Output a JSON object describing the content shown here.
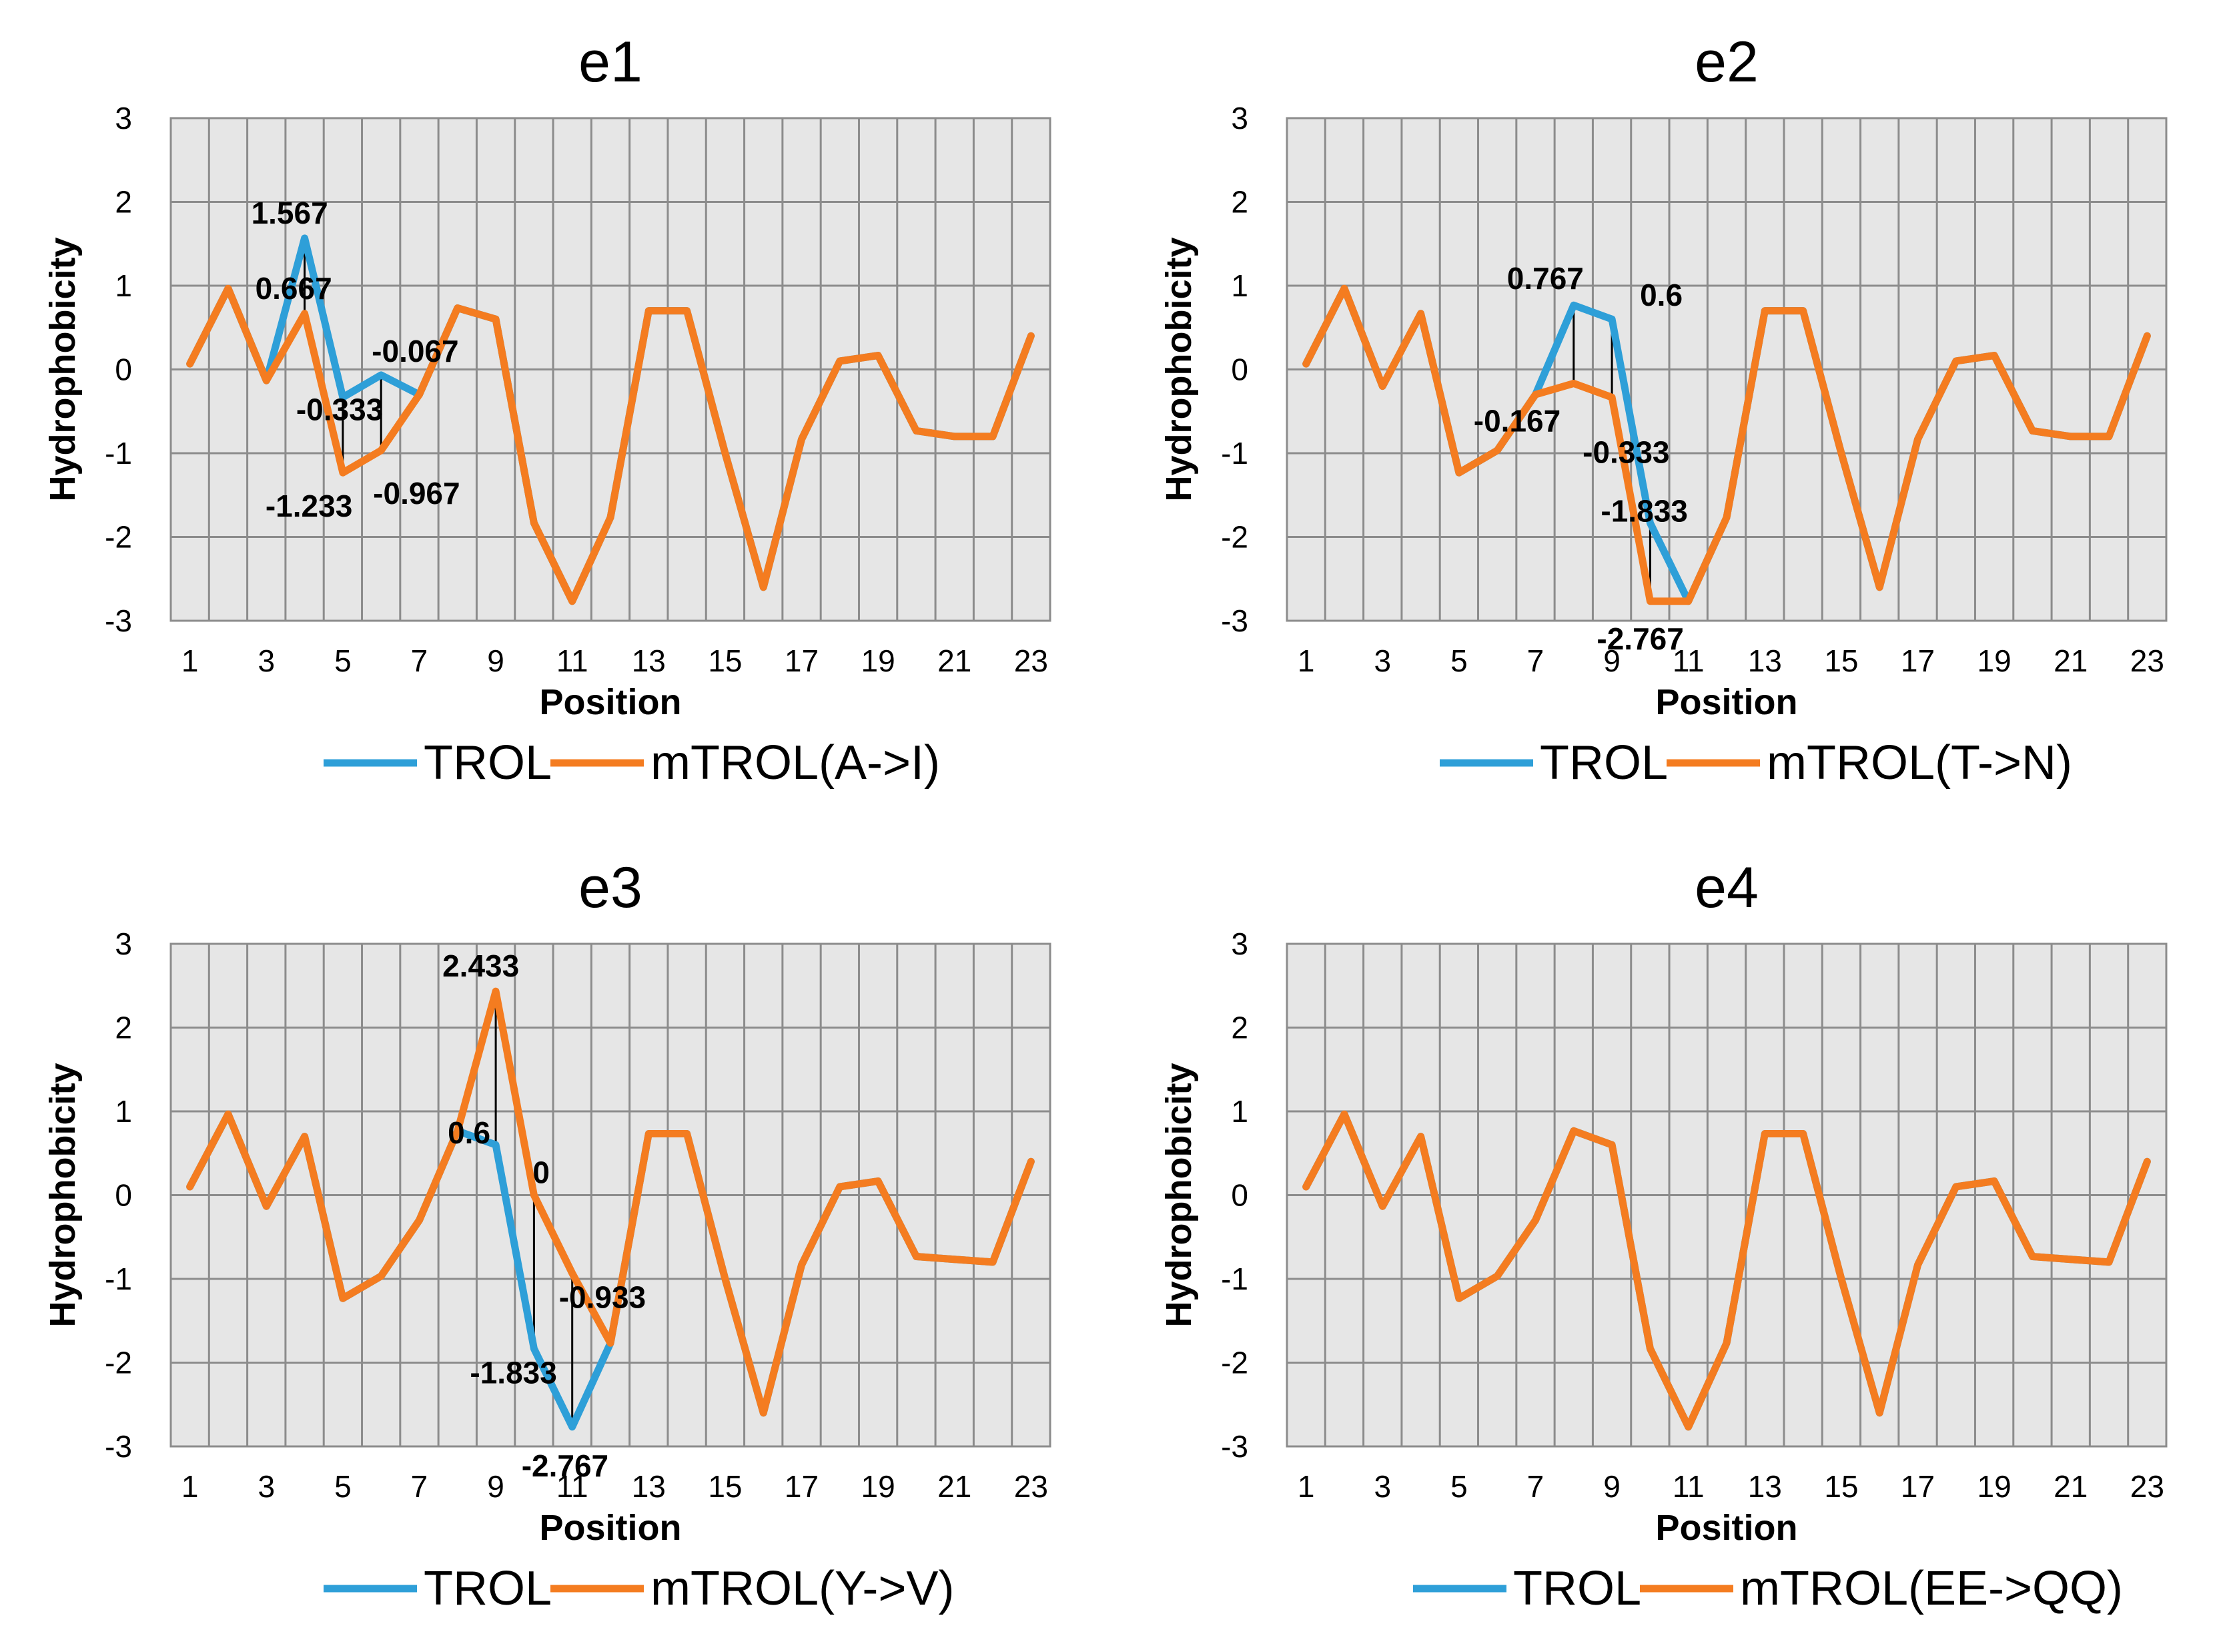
{
  "chart_data": [
    {
      "type": "line",
      "title": "e1",
      "xlabel": "Position",
      "ylabel": "Hydrophobicity",
      "ylim": [
        -3,
        3
      ],
      "xlim": [
        1,
        23
      ],
      "x_ticks": [
        "1",
        "3",
        "5",
        "7",
        "9",
        "11",
        "13",
        "15",
        "17",
        "19",
        "21",
        "23"
      ],
      "y_ticks": [
        "3",
        "2",
        "1",
        "0",
        "-1",
        "-2",
        "-3"
      ],
      "grid": true,
      "legend_position": "bottom",
      "colors": {
        "TROL": "#2e9fd8",
        "mTROL": "#f47c20"
      },
      "x": [
        1,
        2,
        3,
        4,
        5,
        6,
        7,
        8,
        9,
        10,
        11,
        12,
        13,
        14,
        15,
        16,
        17,
        18,
        19,
        20,
        21,
        22,
        23
      ],
      "series": [
        {
          "name": "TROL",
          "values": [
            0.067,
            0.967,
            -0.133,
            1.567,
            -0.333,
            -0.067,
            -0.3,
            0.733,
            0.6,
            -1.833,
            -2.767,
            -1.767,
            0.7,
            0.7,
            -1.0,
            -2.6,
            -0.833,
            0.1,
            0.167,
            -0.733,
            -0.8,
            -0.8,
            0.4
          ]
        },
        {
          "name": "mTROL(A->I)",
          "values": [
            0.067,
            0.967,
            -0.133,
            0.667,
            -1.233,
            -0.967,
            -0.3,
            0.733,
            0.6,
            -1.833,
            -2.767,
            -1.767,
            0.7,
            0.7,
            -1.0,
            -2.6,
            -0.833,
            0.1,
            0.167,
            -0.733,
            -0.8,
            -0.8,
            0.4
          ]
        }
      ],
      "annotations": [
        {
          "x": 4,
          "y": 1.567,
          "text": "1.567"
        },
        {
          "x": 4,
          "y": 0.667,
          "text": "0.667"
        },
        {
          "x": 5,
          "y": -0.333,
          "text": "-0.333"
        },
        {
          "x": 5,
          "y": -1.233,
          "text": "-1.233"
        },
        {
          "x": 6,
          "y": -0.067,
          "text": "-0.067"
        },
        {
          "x": 6,
          "y": -0.967,
          "text": "-0.967"
        }
      ]
    },
    {
      "type": "line",
      "title": "e2",
      "xlabel": "Position",
      "ylabel": "Hydrophobicity",
      "ylim": [
        -3,
        3
      ],
      "xlim": [
        1,
        23
      ],
      "x_ticks": [
        "1",
        "3",
        "5",
        "7",
        "9",
        "11",
        "13",
        "15",
        "17",
        "19",
        "21",
        "23"
      ],
      "y_ticks": [
        "3",
        "2",
        "1",
        "0",
        "-1",
        "-2",
        "-3"
      ],
      "grid": true,
      "legend_position": "bottom",
      "colors": {
        "TROL": "#2e9fd8",
        "mTROL": "#f47c20"
      },
      "x": [
        1,
        2,
        3,
        4,
        5,
        6,
        7,
        8,
        9,
        10,
        11,
        12,
        13,
        14,
        15,
        16,
        17,
        18,
        19,
        20,
        21,
        22,
        23
      ],
      "series": [
        {
          "name": "TROL",
          "values": [
            0.067,
            0.967,
            -0.2,
            0.667,
            -1.233,
            -0.967,
            -0.3,
            0.767,
            0.6,
            -1.833,
            -2.767,
            -1.767,
            0.7,
            0.7,
            -1.0,
            -2.6,
            -0.833,
            0.1,
            0.167,
            -0.733,
            -0.8,
            -0.8,
            0.4
          ]
        },
        {
          "name": "mTROL(T->N)",
          "values": [
            0.067,
            0.967,
            -0.2,
            0.667,
            -1.233,
            -0.967,
            -0.3,
            -0.167,
            -0.333,
            -2.767,
            -2.767,
            -1.767,
            0.7,
            0.7,
            -1.0,
            -2.6,
            -0.833,
            0.1,
            0.167,
            -0.733,
            -0.8,
            -0.8,
            0.4
          ]
        }
      ],
      "annotations": [
        {
          "x": 8,
          "y": 0.767,
          "text": "0.767"
        },
        {
          "x": 9,
          "y": 0.6,
          "text": "0.6"
        },
        {
          "x": 8,
          "y": -0.167,
          "text": "-0.167"
        },
        {
          "x": 9,
          "y": -0.333,
          "text": "-0.333"
        },
        {
          "x": 10,
          "y": -1.833,
          "text": "-1.833"
        },
        {
          "x": 10,
          "y": -2.767,
          "text": "-2.767"
        }
      ]
    },
    {
      "type": "line",
      "title": "e3",
      "xlabel": "Position",
      "ylabel": "Hydrophobicity",
      "ylim": [
        -3,
        3
      ],
      "xlim": [
        1,
        23
      ],
      "x_ticks": [
        "1",
        "3",
        "5",
        "7",
        "9",
        "11",
        "13",
        "15",
        "17",
        "19",
        "21",
        "23"
      ],
      "y_ticks": [
        "3",
        "2",
        "1",
        "0",
        "-1",
        "-2",
        "-3"
      ],
      "grid": true,
      "legend_position": "bottom",
      "colors": {
        "TROL": "#2e9fd8",
        "mTROL": "#f47c20"
      },
      "x": [
        1,
        2,
        3,
        4,
        5,
        6,
        7,
        8,
        9,
        10,
        11,
        12,
        13,
        14,
        15,
        16,
        17,
        18,
        19,
        20,
        21,
        22,
        23
      ],
      "series": [
        {
          "name": "TROL",
          "values": [
            0.1,
            0.967,
            -0.133,
            0.7,
            -1.233,
            -0.967,
            -0.3,
            0.767,
            0.6,
            -1.833,
            -2.767,
            -1.767,
            0.733,
            0.733,
            -1.0,
            -2.6,
            -0.833,
            0.1,
            0.167,
            -0.733,
            -0.767,
            -0.8,
            0.4
          ]
        },
        {
          "name": "mTROL(Y->V)",
          "values": [
            0.1,
            0.967,
            -0.133,
            0.7,
            -1.233,
            -0.967,
            -0.3,
            0.767,
            2.433,
            0.0,
            -0.933,
            -1.767,
            0.733,
            0.733,
            -1.0,
            -2.6,
            -0.833,
            0.1,
            0.167,
            -0.733,
            -0.767,
            -0.8,
            0.4
          ]
        }
      ],
      "annotations": [
        {
          "x": 9,
          "y": 2.433,
          "text": "2.433"
        },
        {
          "x": 9,
          "y": 0.6,
          "text": "0.6"
        },
        {
          "x": 10,
          "y": 0.0,
          "text": "0"
        },
        {
          "x": 11,
          "y": -0.933,
          "text": "-0.933"
        },
        {
          "x": 10,
          "y": -1.833,
          "text": "-1.833"
        },
        {
          "x": 11,
          "y": -2.767,
          "text": "-2.767"
        }
      ]
    },
    {
      "type": "line",
      "title": "e4",
      "xlabel": "Position",
      "ylabel": "Hydrophobicity",
      "ylim": [
        -3,
        3
      ],
      "xlim": [
        1,
        23
      ],
      "x_ticks": [
        "1",
        "3",
        "5",
        "7",
        "9",
        "11",
        "13",
        "15",
        "17",
        "19",
        "21",
        "23"
      ],
      "y_ticks": [
        "3",
        "2",
        "1",
        "0",
        "-1",
        "-2",
        "-3"
      ],
      "grid": true,
      "legend_position": "bottom",
      "colors": {
        "TROL": "#2e9fd8",
        "mTROL": "#f47c20"
      },
      "x": [
        1,
        2,
        3,
        4,
        5,
        6,
        7,
        8,
        9,
        10,
        11,
        12,
        13,
        14,
        15,
        16,
        17,
        18,
        19,
        20,
        21,
        22,
        23
      ],
      "series": [
        {
          "name": "TROL",
          "values": [
            0.1,
            0.967,
            -0.133,
            0.7,
            -1.233,
            -0.967,
            -0.3,
            0.767,
            0.6,
            -1.833,
            -2.767,
            -1.767,
            0.733,
            0.733,
            -1.0,
            -2.6,
            -0.833,
            0.1,
            0.167,
            -0.733,
            -0.767,
            -0.8,
            0.4
          ]
        },
        {
          "name": "mTROL(EE->QQ)",
          "values": [
            0.1,
            0.967,
            -0.133,
            0.7,
            -1.233,
            -0.967,
            -0.3,
            0.767,
            0.6,
            -1.833,
            -2.767,
            -1.767,
            0.733,
            0.733,
            -1.0,
            -2.6,
            -0.833,
            0.1,
            0.167,
            -0.733,
            -0.767,
            -0.8,
            0.4
          ]
        }
      ],
      "annotations": []
    }
  ]
}
